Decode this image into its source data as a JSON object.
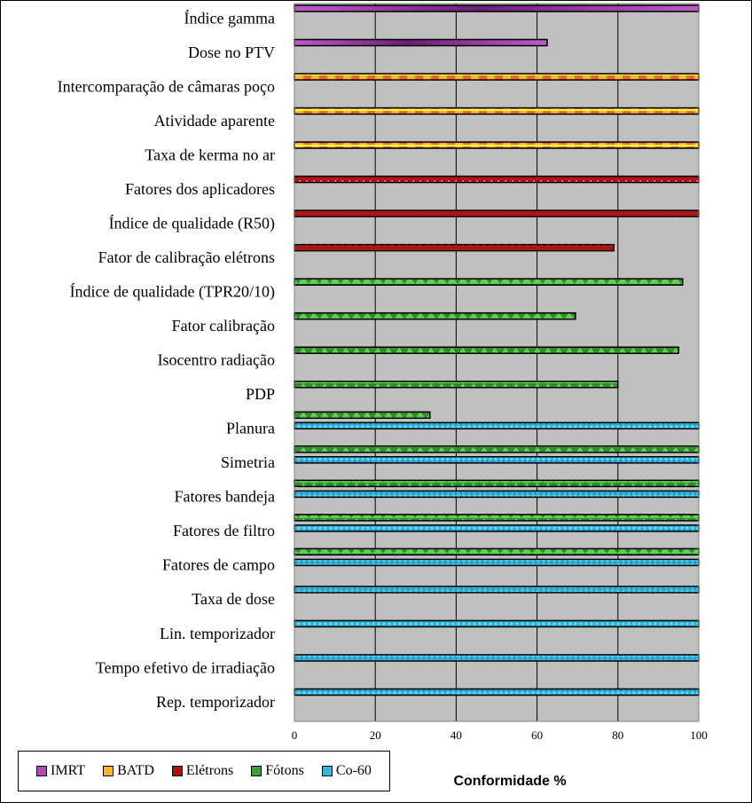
{
  "chart_data": {
    "type": "bar",
    "orientation": "horizontal",
    "xlabel": "Conformidade %",
    "xlim": [
      0,
      100
    ],
    "xticks": [
      0,
      20,
      40,
      60,
      80,
      100
    ],
    "grid": true,
    "legend_position": "bottom-left",
    "categories": [
      "Índice gamma",
      "Dose no PTV",
      "Intercomparação de câmaras poço",
      "Atividade aparente",
      "Taxa de kerma no ar",
      "Fatores dos aplicadores",
      "Índice de qualidade (R50)",
      "Fator de calibração elétrons",
      "Índice de qualidade (TPR20/10)",
      "Fator calibração",
      "Isocentro radiação",
      "PDP",
      "Planura",
      "Simetria",
      "Fatores bandeja",
      "Fatores de filtro",
      "Fatores de campo",
      "Taxa de dose",
      "Lin. temporizador",
      "Tempo efetivo de irradiação",
      "Rep. temporizador"
    ],
    "series": [
      {
        "name": "IMRT",
        "color": "#b04ab8",
        "values": [
          100,
          62.5,
          null,
          null,
          null,
          null,
          null,
          null,
          null,
          null,
          null,
          null,
          null,
          null,
          null,
          null,
          null,
          null,
          null,
          null,
          null
        ]
      },
      {
        "name": "BATD",
        "color": "#f5b830",
        "values": [
          null,
          null,
          100,
          100,
          100,
          null,
          null,
          null,
          null,
          null,
          null,
          null,
          null,
          null,
          null,
          null,
          null,
          null,
          null,
          null,
          null
        ]
      },
      {
        "name": "Elétrons",
        "color": "#a81010",
        "values": [
          null,
          null,
          null,
          null,
          null,
          100,
          100,
          79,
          null,
          null,
          null,
          null,
          null,
          null,
          null,
          null,
          null,
          null,
          null,
          null,
          null
        ]
      },
      {
        "name": "Fótons",
        "color": "#3aa13a",
        "values": [
          null,
          null,
          null,
          null,
          null,
          null,
          null,
          null,
          96,
          69.5,
          95,
          80,
          33.5,
          100,
          100,
          100,
          100,
          null,
          null,
          null,
          null
        ]
      },
      {
        "name": "Co-60",
        "color": "#35b7dd",
        "values": [
          null,
          null,
          null,
          null,
          null,
          null,
          null,
          null,
          null,
          null,
          null,
          null,
          100,
          100,
          100,
          100,
          100,
          100,
          100,
          100,
          100
        ]
      }
    ]
  }
}
